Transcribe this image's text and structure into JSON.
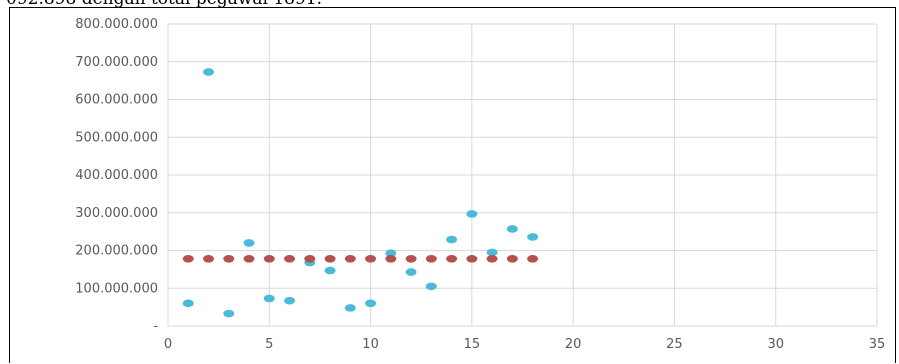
{
  "document": {
    "partial_text": "092.898 dengan total pegawai 1891."
  },
  "chart_data": {
    "type": "scatter",
    "title": "",
    "xlabel": "",
    "ylabel": "",
    "xlim": [
      0,
      35
    ],
    "ylim": [
      0,
      800000000
    ],
    "x_ticks": [
      0,
      5,
      10,
      15,
      20,
      25,
      30,
      35
    ],
    "y_tick_labels": [
      "-",
      "100.000.000",
      "200.000.000",
      "300.000.000",
      "400.000.000",
      "500.000.000",
      "600.000.000",
      "700.000.000",
      "800.000.000"
    ],
    "y_ticks": [
      0,
      100000000,
      200000000,
      300000000,
      400000000,
      500000000,
      600000000,
      700000000,
      800000000
    ],
    "grid": true,
    "series": [
      {
        "color": "#4bb9d9",
        "points": [
          [
            1,
            60000000
          ],
          [
            2,
            673000000
          ],
          [
            3,
            33000000
          ],
          [
            4,
            220000000
          ],
          [
            5,
            73000000
          ],
          [
            6,
            67000000
          ],
          [
            7,
            168000000
          ],
          [
            8,
            147000000
          ],
          [
            9,
            48000000
          ],
          [
            10,
            60000000
          ],
          [
            11,
            193000000
          ],
          [
            12,
            143000000
          ],
          [
            13,
            105000000
          ],
          [
            14,
            229000000
          ],
          [
            15,
            297000000
          ],
          [
            16,
            195000000
          ],
          [
            17,
            257000000
          ],
          [
            18,
            236000000
          ]
        ]
      },
      {
        "color": "#b5504e",
        "points": [
          [
            1,
            178000000
          ],
          [
            2,
            178000000
          ],
          [
            3,
            178000000
          ],
          [
            4,
            178000000
          ],
          [
            5,
            178000000
          ],
          [
            6,
            178000000
          ],
          [
            7,
            178000000
          ],
          [
            8,
            178000000
          ],
          [
            9,
            178000000
          ],
          [
            10,
            178000000
          ],
          [
            11,
            178000000
          ],
          [
            12,
            178000000
          ],
          [
            13,
            178000000
          ],
          [
            14,
            178000000
          ],
          [
            15,
            178000000
          ],
          [
            16,
            178000000
          ],
          [
            17,
            178000000
          ],
          [
            18,
            178000000
          ]
        ]
      }
    ]
  }
}
